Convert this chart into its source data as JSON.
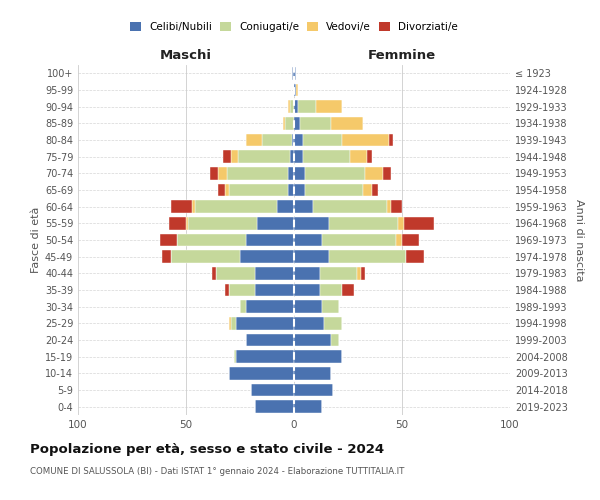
{
  "age_groups": [
    "0-4",
    "5-9",
    "10-14",
    "15-19",
    "20-24",
    "25-29",
    "30-34",
    "35-39",
    "40-44",
    "45-49",
    "50-54",
    "55-59",
    "60-64",
    "65-69",
    "70-74",
    "75-79",
    "80-84",
    "85-89",
    "90-94",
    "95-99",
    "100+"
  ],
  "birth_years": [
    "2019-2023",
    "2014-2018",
    "2009-2013",
    "2004-2008",
    "1999-2003",
    "1994-1998",
    "1989-1993",
    "1984-1988",
    "1979-1983",
    "1974-1978",
    "1969-1973",
    "1964-1968",
    "1959-1963",
    "1954-1958",
    "1949-1953",
    "1944-1948",
    "1939-1943",
    "1934-1938",
    "1929-1933",
    "1924-1928",
    "≤ 1923"
  ],
  "colors": {
    "celibi": "#4a72b0",
    "coniugati": "#c5d89b",
    "vedovi": "#f5c96a",
    "divorziati": "#c0392b"
  },
  "maschi": {
    "celibi": [
      18,
      20,
      30,
      27,
      22,
      27,
      22,
      18,
      18,
      25,
      22,
      17,
      8,
      3,
      3,
      2,
      1,
      0,
      0,
      0,
      1
    ],
    "coniugati": [
      0,
      0,
      0,
      1,
      0,
      2,
      3,
      12,
      18,
      32,
      32,
      32,
      38,
      27,
      28,
      24,
      14,
      4,
      2,
      0,
      0
    ],
    "vedovi": [
      0,
      0,
      0,
      0,
      0,
      1,
      0,
      0,
      0,
      0,
      0,
      1,
      1,
      2,
      4,
      3,
      7,
      1,
      1,
      0,
      0
    ],
    "divorziati": [
      0,
      0,
      0,
      0,
      0,
      0,
      0,
      2,
      2,
      4,
      8,
      8,
      10,
      3,
      4,
      4,
      0,
      0,
      0,
      0,
      0
    ]
  },
  "femmine": {
    "celibi": [
      13,
      18,
      17,
      22,
      17,
      14,
      13,
      12,
      12,
      16,
      13,
      16,
      9,
      5,
      5,
      4,
      4,
      3,
      2,
      1,
      1
    ],
    "coniugati": [
      0,
      0,
      0,
      0,
      4,
      8,
      8,
      10,
      17,
      36,
      34,
      32,
      34,
      27,
      28,
      22,
      18,
      14,
      8,
      0,
      0
    ],
    "vedovi": [
      0,
      0,
      0,
      0,
      0,
      0,
      0,
      0,
      2,
      0,
      3,
      3,
      2,
      4,
      8,
      8,
      22,
      15,
      12,
      1,
      0
    ],
    "divorziati": [
      0,
      0,
      0,
      0,
      0,
      0,
      0,
      6,
      2,
      8,
      8,
      14,
      5,
      3,
      4,
      2,
      2,
      0,
      0,
      0,
      0
    ]
  },
  "xlim": 100,
  "title": "Popolazione per età, sesso e stato civile - 2024",
  "subtitle": "COMUNE DI SALUSSOLA (BI) - Dati ISTAT 1° gennaio 2024 - Elaborazione TUTTITALIA.IT",
  "ylabel_left": "Fasce di età",
  "ylabel_right": "Anni di nascita",
  "xlabel_left": "Maschi",
  "xlabel_right": "Femmine"
}
